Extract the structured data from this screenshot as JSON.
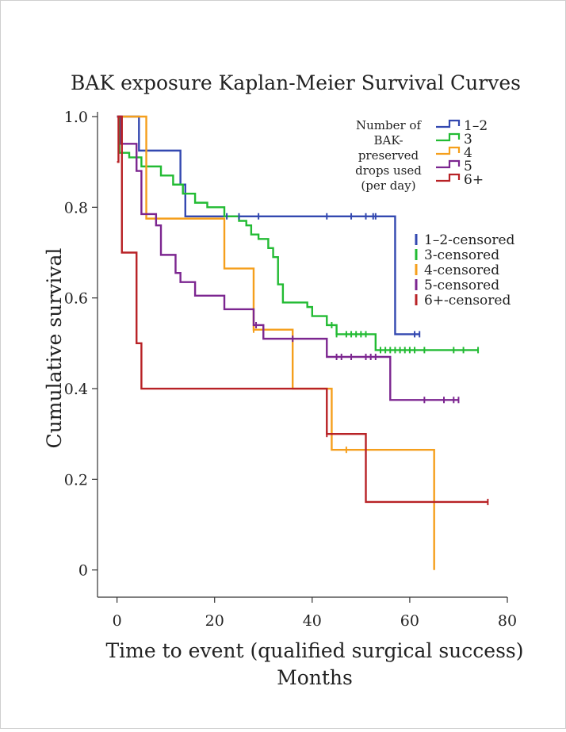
{
  "chart_data": {
    "type": "line",
    "title": "BAK exposure Kaplan-Meier Survival Curves",
    "xlabel": "Time to event (qualified surgical success)",
    "xlabel2": "Months",
    "ylabel": "Cumulative survival",
    "xlim": [
      -4,
      80
    ],
    "ylim": [
      -0.06,
      1.0
    ],
    "xticks": [
      0,
      20,
      40,
      60,
      80
    ],
    "xtick_labels": [
      "0",
      "20",
      "40",
      "60",
      "80"
    ],
    "yticks": [
      0,
      0.2,
      0.4,
      0.6,
      0.8,
      1.0
    ],
    "ytick_labels": [
      "0",
      "0.2",
      "0.4",
      "0.6",
      "0.8",
      "1.0"
    ],
    "grid": false,
    "legend_title": [
      "Number of",
      "BAK-",
      "preserved",
      "drops used",
      "(per day)"
    ],
    "legend_placement": "top-right",
    "censored_legend_placement": "right",
    "series": [
      {
        "name": "1–2",
        "censored_name": "1–2-censored",
        "color": "#3348b0",
        "steps": [
          [
            0,
            1.0
          ],
          [
            4.5,
            0.925
          ],
          [
            13,
            0.85
          ],
          [
            14,
            0.78
          ],
          [
            57,
            0.52
          ],
          [
            62,
            0.52
          ]
        ],
        "censored": [
          22.5,
          25,
          29,
          43,
          48,
          51,
          52.5,
          53,
          61,
          62
        ]
      },
      {
        "name": "3",
        "censored_name": "3-censored",
        "color": "#22bb33",
        "steps": [
          [
            0,
            1.0
          ],
          [
            0.5,
            0.92
          ],
          [
            2.5,
            0.91
          ],
          [
            5,
            0.89
          ],
          [
            9,
            0.87
          ],
          [
            11.5,
            0.85
          ],
          [
            13.5,
            0.83
          ],
          [
            16,
            0.81
          ],
          [
            18.5,
            0.8
          ],
          [
            22,
            0.78
          ],
          [
            25,
            0.77
          ],
          [
            26.5,
            0.76
          ],
          [
            27.5,
            0.74
          ],
          [
            29,
            0.73
          ],
          [
            31,
            0.71
          ],
          [
            32,
            0.69
          ],
          [
            33,
            0.63
          ],
          [
            34,
            0.59
          ],
          [
            39,
            0.58
          ],
          [
            40,
            0.56
          ],
          [
            43,
            0.54
          ],
          [
            45,
            0.52
          ],
          [
            53,
            0.485
          ],
          [
            74,
            0.485
          ]
        ],
        "censored": [
          44,
          45,
          47,
          48,
          49,
          50,
          51,
          54,
          55,
          56,
          57,
          58,
          59,
          60,
          61,
          63,
          69,
          71,
          74
        ]
      },
      {
        "name": "4",
        "censored_name": "4-censored",
        "color": "#f59f1c",
        "steps": [
          [
            0,
            1.0
          ],
          [
            6,
            0.775
          ],
          [
            22,
            0.665
          ],
          [
            28,
            0.53
          ],
          [
            36,
            0.4
          ],
          [
            44,
            0.265
          ],
          [
            65,
            0.0
          ]
        ],
        "censored": [
          28,
          47
        ]
      },
      {
        "name": "5",
        "censored_name": "5-censored",
        "color": "#7c2690",
        "steps": [
          [
            0,
            1.0
          ],
          [
            0.8,
            0.94
          ],
          [
            4,
            0.88
          ],
          [
            5,
            0.785
          ],
          [
            8,
            0.76
          ],
          [
            9,
            0.695
          ],
          [
            12,
            0.655
          ],
          [
            13,
            0.635
          ],
          [
            16,
            0.605
          ],
          [
            22,
            0.575
          ],
          [
            28,
            0.54
          ],
          [
            30,
            0.51
          ],
          [
            43,
            0.47
          ],
          [
            56,
            0.375
          ],
          [
            70,
            0.375
          ]
        ],
        "censored": [
          28.5,
          36,
          45,
          46,
          48,
          51,
          52,
          53,
          63,
          67,
          69,
          70
        ]
      },
      {
        "name": "6+",
        "censored_name": "6+-censored",
        "color": "#b82226",
        "steps": [
          [
            0,
            0.9
          ],
          [
            0.3,
            1.0
          ],
          [
            1,
            0.7
          ],
          [
            4,
            0.5
          ],
          [
            5,
            0.4
          ],
          [
            43,
            0.3
          ],
          [
            51,
            0.15
          ],
          [
            76,
            0.15
          ]
        ],
        "censored": [
          43,
          76
        ]
      }
    ]
  }
}
